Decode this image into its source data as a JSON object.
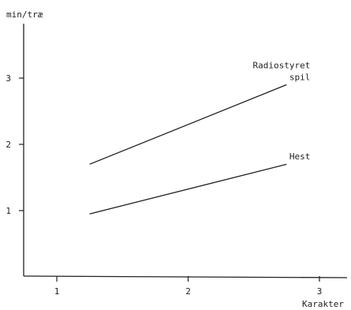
{
  "chart_data": {
    "type": "line",
    "xlabel": "Karakter",
    "ylabel": "min/træ",
    "xlim": [
      0.75,
      3.25
    ],
    "ylim": [
      0,
      3.8
    ],
    "xticks": [
      1,
      2,
      3
    ],
    "xtick_labels": [
      "1",
      "2",
      "3"
    ],
    "yticks": [
      1,
      2,
      3
    ],
    "ytick_labels": [
      "1",
      "2",
      "3"
    ],
    "grid": false,
    "series": [
      {
        "name": "Radiostyret spil",
        "label_lines": [
          "Radiostyret",
          "spil"
        ],
        "x": [
          1.25,
          2.75
        ],
        "y": [
          1.7,
          2.9
        ]
      },
      {
        "name": "Hest",
        "label_lines": [
          "Hest"
        ],
        "x": [
          1.25,
          2.75
        ],
        "y": [
          0.95,
          1.7
        ]
      }
    ]
  }
}
